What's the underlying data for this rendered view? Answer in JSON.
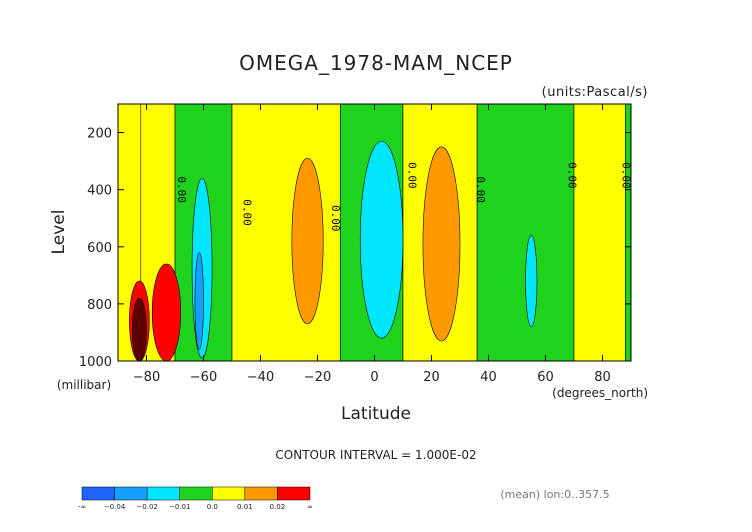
{
  "chart_data": {
    "type": "heatmap",
    "title": "OMEGA_1978-MAM_NCEP",
    "units_label": "(units:Pascal/s)",
    "xlabel": "Latitude",
    "x_units": "(degrees_north)",
    "ylabel": "Level",
    "y_units": "(millibar)",
    "xlim": [
      -90,
      90
    ],
    "ylim": [
      1000,
      100
    ],
    "y_inverted": true,
    "x_ticks": [
      -80,
      -60,
      -40,
      -20,
      0,
      20,
      40,
      60,
      80
    ],
    "x_tick_labels": [
      "−80",
      "−60",
      "−40",
      "−20",
      "0",
      "20",
      "40",
      "60",
      "80"
    ],
    "y_ticks": [
      200,
      400,
      600,
      800,
      1000
    ],
    "y_tick_labels": [
      "200",
      "400",
      "600",
      "800",
      "1000"
    ],
    "contour_label": "0.00",
    "contour_interval_text": "CONTOUR INTERVAL = 1.000E-02",
    "footer_text": "(mean) lon:0..357.5",
    "grid": false,
    "colorbar": {
      "colors": [
        "#1e64ff",
        "#14a0ff",
        "#00e6ff",
        "#1ed21e",
        "#ffff00",
        "#ff9900",
        "#ff0000"
      ],
      "tick_labels": [
        "-∞",
        "−0.04",
        "−0.02",
        "−0.01",
        "0.0",
        "0.01",
        "0.02",
        "∞"
      ]
    },
    "bands": [
      {
        "lat_min": -90,
        "lat_max": -82,
        "level_top": 100,
        "level_bottom": 1000,
        "value": 0.005
      },
      {
        "lat_min": -82,
        "lat_max": -70,
        "level_top": 100,
        "level_bottom": 1000,
        "value": 0.005
      },
      {
        "lat_min": -70,
        "lat_max": -50,
        "level_top": 100,
        "level_bottom": 1000,
        "value": -0.005
      },
      {
        "lat_min": -50,
        "lat_max": -12,
        "level_top": 100,
        "level_bottom": 1000,
        "value": 0.005
      },
      {
        "lat_min": -12,
        "lat_max": 10,
        "level_top": 100,
        "level_bottom": 1000,
        "value": -0.005
      },
      {
        "lat_min": 10,
        "lat_max": 36,
        "level_top": 100,
        "level_bottom": 1000,
        "value": 0.005
      },
      {
        "lat_min": 36,
        "lat_max": 70,
        "level_top": 100,
        "level_bottom": 1000,
        "value": -0.005
      },
      {
        "lat_min": 70,
        "lat_max": 88,
        "level_top": 100,
        "level_bottom": 1000,
        "value": 0.005
      },
      {
        "lat_min": 88,
        "lat_max": 90,
        "level_top": 100,
        "level_bottom": 1000,
        "value": -0.005
      }
    ],
    "cells": [
      {
        "lat_min": -29,
        "lat_max": -18,
        "level_top": 290,
        "level_bottom": 870,
        "value": 0.015
      },
      {
        "lat_min": 17,
        "lat_max": 30,
        "level_top": 250,
        "level_bottom": 930,
        "value": 0.015
      },
      {
        "lat_min": -5,
        "lat_max": 10,
        "level_top": 230,
        "level_bottom": 920,
        "value": -0.015
      },
      {
        "lat_min": -64,
        "lat_max": -57,
        "level_top": 360,
        "level_bottom": 990,
        "value": -0.015
      },
      {
        "lat_min": -63,
        "lat_max": -60,
        "level_top": 620,
        "level_bottom": 960,
        "value": -0.025
      },
      {
        "lat_min": 53,
        "lat_max": 57,
        "level_top": 560,
        "level_bottom": 880,
        "value": -0.015
      },
      {
        "lat_min": -78,
        "lat_max": -68,
        "level_top": 660,
        "level_bottom": 1000,
        "value": 0.025
      },
      {
        "lat_min": -86,
        "lat_max": -79,
        "level_top": 720,
        "level_bottom": 1000,
        "value": 0.025
      },
      {
        "lat_min": -85,
        "lat_max": -80,
        "level_top": 780,
        "level_bottom": 1000,
        "value": 0.06
      }
    ],
    "contour_labels": [
      {
        "lat": -69,
        "level": 400
      },
      {
        "lat": -46,
        "level": 480
      },
      {
        "lat": -15,
        "level": 500
      },
      {
        "lat": 12,
        "level": 350
      },
      {
        "lat": 36,
        "level": 400
      },
      {
        "lat": 68,
        "level": 350
      },
      {
        "lat": 87,
        "level": 350
      }
    ]
  }
}
